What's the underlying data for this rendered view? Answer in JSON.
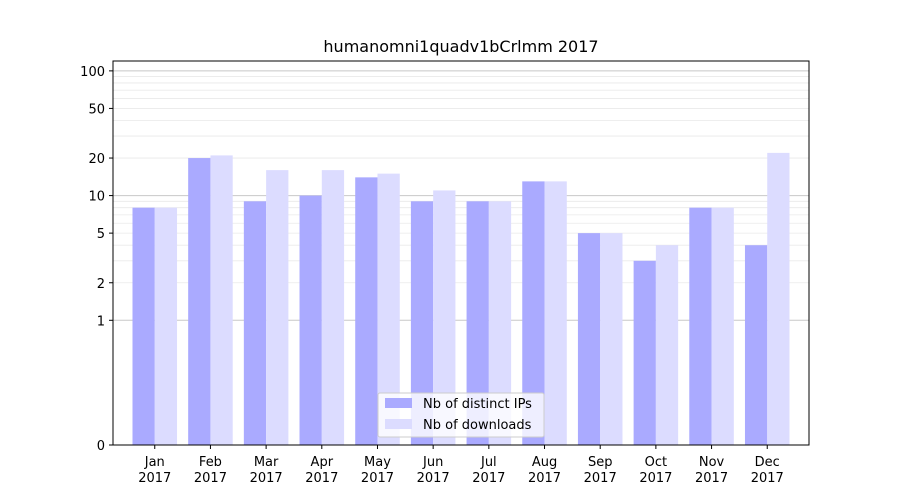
{
  "chart_data": {
    "type": "bar",
    "title": "humanomni1quadv1bCrlmm 2017",
    "xlabel": "",
    "ylabel": "",
    "yscale": "symlog",
    "ylim": [
      0,
      120
    ],
    "yticks": [
      0,
      1,
      2,
      5,
      10,
      20,
      50,
      100
    ],
    "ytick_labels": [
      "0",
      "1",
      "2",
      "5",
      "10",
      "20",
      "50",
      "100"
    ],
    "grid": "horizontal",
    "legend_position": "bottom-center",
    "categories": [
      {
        "month": "Jan",
        "year": "2017"
      },
      {
        "month": "Feb",
        "year": "2017"
      },
      {
        "month": "Mar",
        "year": "2017"
      },
      {
        "month": "Apr",
        "year": "2017"
      },
      {
        "month": "May",
        "year": "2017"
      },
      {
        "month": "Jun",
        "year": "2017"
      },
      {
        "month": "Jul",
        "year": "2017"
      },
      {
        "month": "Aug",
        "year": "2017"
      },
      {
        "month": "Sep",
        "year": "2017"
      },
      {
        "month": "Oct",
        "year": "2017"
      },
      {
        "month": "Nov",
        "year": "2017"
      },
      {
        "month": "Dec",
        "year": "2017"
      }
    ],
    "series": [
      {
        "name": "Nb of distinct IPs",
        "color": "#aaaaff",
        "values": [
          8,
          20,
          9,
          10,
          14,
          9,
          9,
          13,
          5,
          3,
          8,
          4
        ]
      },
      {
        "name": "Nb of downloads",
        "color": "#dcdcff",
        "values": [
          8,
          21,
          16,
          16,
          15,
          11,
          9,
          13,
          5,
          4,
          8,
          22
        ]
      }
    ]
  }
}
